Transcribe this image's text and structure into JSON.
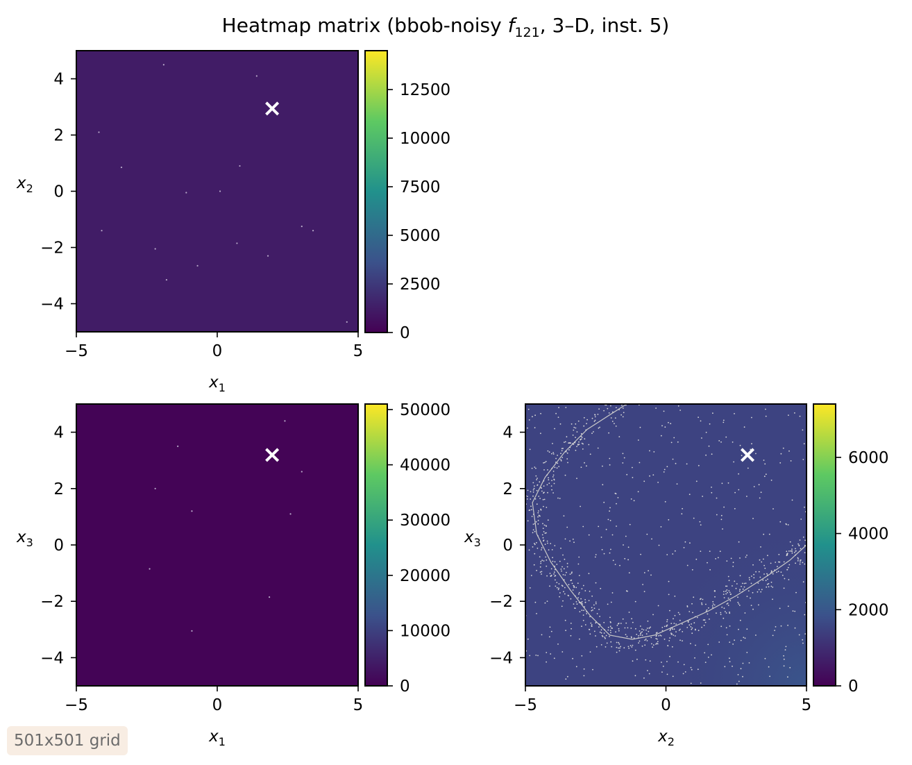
{
  "figure": {
    "title_prefix": "Heatmap matrix (bbob-noisy ",
    "title_func": "f",
    "title_func_sub": "121",
    "title_suffix": ", 3–D, inst. 5)",
    "grid_badge": "501x501 grid"
  },
  "colormap": {
    "name": "viridis",
    "stops": [
      "#440154",
      "#3b528b",
      "#21918c",
      "#5ec962",
      "#fde725"
    ]
  },
  "chart_data": [
    {
      "type": "heatmap",
      "panel": "x1-x2",
      "xlabel": "x",
      "xlabel_sub": "1",
      "ylabel": "x",
      "ylabel_sub": "2",
      "xlim": [
        -5,
        5
      ],
      "ylim": [
        -5,
        5
      ],
      "xticks": [
        -5,
        0,
        5
      ],
      "xtick_labels": [
        "−5",
        "0",
        "5"
      ],
      "yticks": [
        -4,
        -2,
        0,
        2,
        4
      ],
      "ytick_labels": [
        "−4",
        "−2",
        "0",
        "2",
        "4"
      ],
      "colorbar": {
        "min": 0,
        "max": 14500,
        "ticks": [
          0,
          2500,
          5000,
          7500,
          10000,
          12500
        ],
        "tick_labels": [
          "0",
          "2500",
          "5000",
          "7500",
          "10000",
          "12500"
        ]
      },
      "background_value": 1200,
      "optimum": {
        "x": 1.95,
        "y": 2.95,
        "marker": "×"
      },
      "speckles": [
        [
          -1.9,
          4.5
        ],
        [
          1.4,
          4.1
        ],
        [
          -4.2,
          2.1
        ],
        [
          0.1,
          0.0
        ],
        [
          -1.1,
          -0.05
        ],
        [
          0.8,
          0.9
        ],
        [
          -4.1,
          -1.4
        ],
        [
          3.0,
          -1.25
        ],
        [
          0.7,
          -1.85
        ],
        [
          1.8,
          -2.3
        ],
        [
          -0.7,
          -2.65
        ],
        [
          -1.8,
          -3.15
        ],
        [
          4.6,
          -4.65
        ],
        [
          3.4,
          -1.4
        ],
        [
          -3.4,
          0.85
        ],
        [
          -2.2,
          -2.05
        ]
      ]
    },
    {
      "type": "heatmap",
      "panel": "x1-x3",
      "xlabel": "x",
      "xlabel_sub": "1",
      "ylabel": "x",
      "ylabel_sub": "3",
      "xlim": [
        -5,
        5
      ],
      "ylim": [
        -5,
        5
      ],
      "xticks": [
        -5,
        0,
        5
      ],
      "xtick_labels": [
        "−5",
        "0",
        "5"
      ],
      "yticks": [
        -4,
        -2,
        0,
        2,
        4
      ],
      "ytick_labels": [
        "−4",
        "−2",
        "0",
        "2",
        "4"
      ],
      "colorbar": {
        "min": 0,
        "max": 51000,
        "ticks": [
          0,
          10000,
          20000,
          30000,
          40000,
          50000
        ],
        "tick_labels": [
          "0",
          "10000",
          "20000",
          "30000",
          "40000",
          "50000"
        ]
      },
      "background_value": 400,
      "optimum": {
        "x": 1.95,
        "y": 3.2,
        "marker": "×"
      },
      "speckles": [
        [
          2.4,
          4.4
        ],
        [
          -1.4,
          3.5
        ],
        [
          -2.2,
          2.0
        ],
        [
          2.6,
          1.1
        ],
        [
          -0.9,
          1.2
        ],
        [
          -2.4,
          -0.85
        ],
        [
          1.85,
          -1.85
        ],
        [
          -0.9,
          -3.05
        ],
        [
          3.0,
          2.6
        ]
      ]
    },
    {
      "type": "heatmap",
      "panel": "x2-x3",
      "xlabel": "x",
      "xlabel_sub": "2",
      "ylabel": "x",
      "ylabel_sub": "3",
      "xlim": [
        -5,
        5
      ],
      "ylim": [
        -5,
        5
      ],
      "xticks": [
        -5,
        0,
        5
      ],
      "xtick_labels": [
        "−5",
        "0",
        "5"
      ],
      "yticks": [
        -4,
        -2,
        0,
        2,
        4
      ],
      "ytick_labels": [
        "−4",
        "−2",
        "0",
        "2",
        "4"
      ],
      "colorbar": {
        "min": 0,
        "max": 7400,
        "ticks": [
          0,
          2000,
          4000,
          6000
        ],
        "tick_labels": [
          "0",
          "2000",
          "4000",
          "6000"
        ]
      },
      "background_value": 1500,
      "optimum": {
        "x": 2.9,
        "y": 3.2,
        "marker": "×"
      },
      "valley_curve": [
        [
          -1.4,
          5.0
        ],
        [
          -2.8,
          4.1
        ],
        [
          -3.6,
          3.3
        ],
        [
          -4.3,
          2.4
        ],
        [
          -4.75,
          1.5
        ],
        [
          -4.6,
          0.4
        ],
        [
          -4.1,
          -0.6
        ],
        [
          -3.4,
          -1.6
        ],
        [
          -2.7,
          -2.5
        ],
        [
          -2.0,
          -3.2
        ],
        [
          -1.2,
          -3.35
        ],
        [
          -0.4,
          -3.2
        ],
        [
          0.5,
          -2.8
        ],
        [
          1.5,
          -2.35
        ],
        [
          2.5,
          -1.8
        ],
        [
          3.6,
          -1.1
        ],
        [
          4.4,
          -0.55
        ],
        [
          5.0,
          0.0
        ]
      ],
      "speckle_count": 1100
    }
  ]
}
